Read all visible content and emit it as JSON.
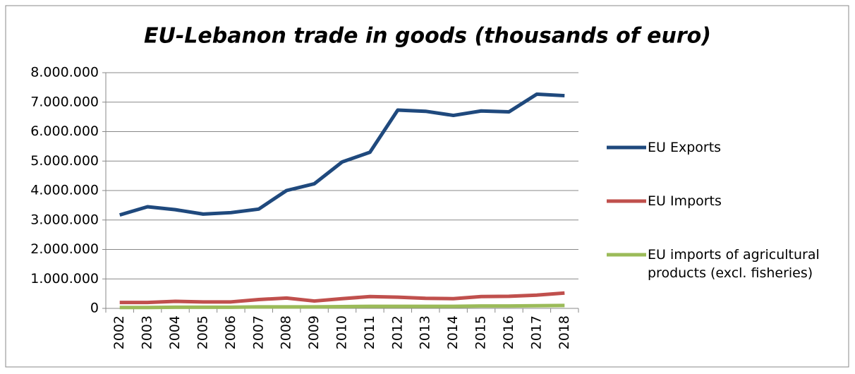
{
  "chart_data": {
    "type": "line",
    "title": "EU-Lebanon trade in goods (thousands of euro)",
    "categories": [
      "2002",
      "2003",
      "2004",
      "2005",
      "2006",
      "2007",
      "2008",
      "2009",
      "2010",
      "2011",
      "2012",
      "2013",
      "2014",
      "2015",
      "2016",
      "2017",
      "2018"
    ],
    "series": [
      {
        "name": "EU Exports",
        "color": "#1f497d",
        "values": [
          3170000,
          3450000,
          3350000,
          3200000,
          3250000,
          3370000,
          4000000,
          4230000,
          4970000,
          5300000,
          6730000,
          6690000,
          6550000,
          6700000,
          6670000,
          7270000,
          7220000
        ]
      },
      {
        "name": "EU Imports",
        "color": "#c0504d",
        "values": [
          200000,
          200000,
          240000,
          220000,
          220000,
          300000,
          350000,
          250000,
          330000,
          400000,
          380000,
          340000,
          330000,
          400000,
          410000,
          450000,
          520000
        ]
      },
      {
        "name": "EU imports of agricultural products (excl. fisheries)",
        "color": "#9bbb59",
        "values": [
          30000,
          30000,
          40000,
          40000,
          40000,
          50000,
          50000,
          50000,
          60000,
          70000,
          70000,
          70000,
          70000,
          80000,
          80000,
          90000,
          100000
        ]
      }
    ],
    "ylim": [
      0,
      8000000
    ],
    "yticks": [
      0,
      {
        "value": 1000000,
        "label": "1.000.000"
      },
      {
        "value": 2000000,
        "label": "2.000.000"
      },
      {
        "value": 3000000,
        "label": "3.000.000"
      },
      {
        "value": 4000000,
        "label": "4.000.000"
      },
      {
        "value": 5000000,
        "label": "5.000.000"
      },
      {
        "value": 6000000,
        "label": "6.000.000"
      },
      {
        "value": 7000000,
        "label": "7.000.000"
      },
      {
        "value": 8000000,
        "label": "8.000.000"
      }
    ],
    "grid": true,
    "legend": "right"
  }
}
